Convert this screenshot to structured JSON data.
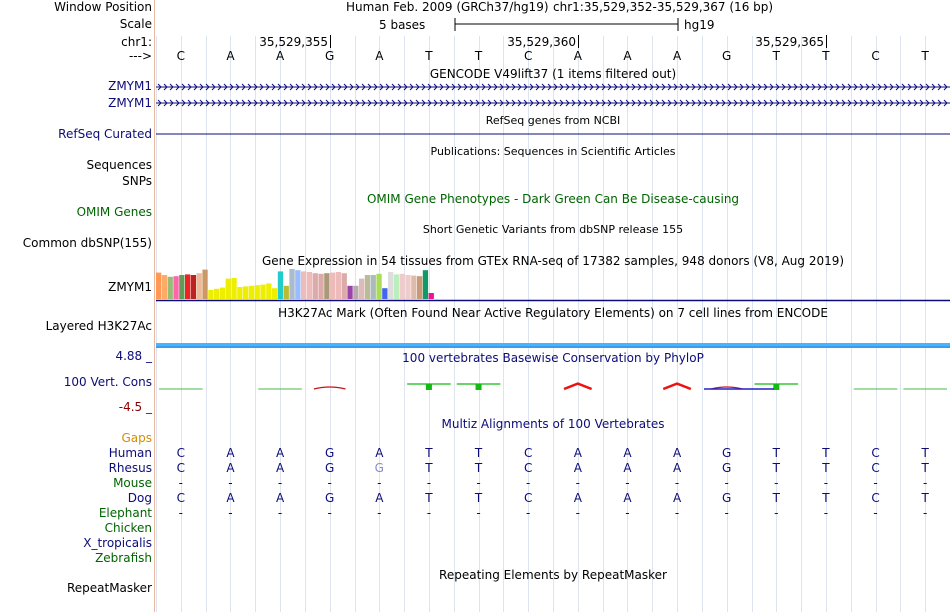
{
  "sidebar": {
    "labels": [
      {
        "text": "Window Position",
        "color": "#000000"
      },
      {
        "text": "Scale",
        "color": "#000000"
      },
      {
        "text": "chr1:",
        "color": "#000000"
      },
      {
        "text": "--->",
        "color": "#000000"
      },
      {
        "text": "ZMYM1",
        "color": "#0c0c78"
      },
      {
        "text": "ZMYM1",
        "color": "#0c0c78"
      },
      {
        "text": "RefSeq Curated",
        "color": "#0c0c78"
      },
      {
        "text": "Sequences",
        "color": "#000000"
      },
      {
        "text": "SNPs",
        "color": "#000000"
      },
      {
        "text": "OMIM Genes",
        "color": "#006400"
      },
      {
        "text": "Common dbSNP(155)",
        "color": "#000000"
      },
      {
        "text": "ZMYM1",
        "color": "#000000"
      },
      {
        "text": "Layered H3K27Ac",
        "color": "#000000"
      },
      {
        "text": "4.88 _",
        "color": "#0c0c78"
      },
      {
        "text": "100 Vert. Cons",
        "color": "#0c0c78"
      },
      {
        "text": "-4.5 _",
        "color": "#8b0000"
      },
      {
        "text": "Gaps",
        "color": "#d88c00"
      },
      {
        "text": "Human",
        "color": "#0c0c78"
      },
      {
        "text": "Rhesus",
        "color": "#0c0c78"
      },
      {
        "text": "Mouse",
        "color": "#006400"
      },
      {
        "text": "Dog",
        "color": "#0c0c78"
      },
      {
        "text": "Elephant",
        "color": "#006400"
      },
      {
        "text": "Chicken",
        "color": "#006400"
      },
      {
        "text": "X_tropicalis",
        "color": "#0c0c78"
      },
      {
        "text": "Zebrafish",
        "color": "#006400"
      },
      {
        "text": "RepeatMasker",
        "color": "#000000"
      }
    ]
  },
  "header": {
    "assembly": "Human Feb. 2009 (GRCh37/hg19)",
    "position": "chr1:35,529,352-35,529,367 (16 bp)",
    "scale_label": "5 bases",
    "scale_db": "hg19",
    "ticks": [
      "35,529,355",
      "35,529,360",
      "35,529,365"
    ]
  },
  "bases": [
    "C",
    "A",
    "A",
    "G",
    "A",
    "T",
    "T",
    "C",
    "A",
    "A",
    "A",
    "G",
    "T",
    "T",
    "C",
    "T"
  ],
  "tracks": {
    "gencode_title": "GENCODE V49lift37 (1 items filtered out)",
    "refseq_title": "RefSeq genes from NCBI",
    "publications_title": "Publications: Sequences in Scientific Articles",
    "omim_title": "OMIM Gene Phenotypes - Dark Green Can Be Disease-causing",
    "dbsnp_title": "Short Genetic Variants from dbSNP release 155",
    "gtex_title": "Gene Expression in 54 tissues from GTEx RNA-seq of 17382 samples, 948 donors (V8, Aug 2019)",
    "h3k27ac_title": "H3K27Ac Mark (Often Found Near Active Regulatory Elements) on 7 cell lines from ENCODE",
    "phylop_title": "100 vertebrates Basewise Conservation by PhyloP",
    "multiz_title": "Multiz Alignments of 100 Vertebrates",
    "repeatmasker_title": "Repeating Elements by RepeatMasker"
  },
  "gtex_bars": [
    {
      "color": "#ff9955",
      "value": 0.88
    },
    {
      "color": "#ffaa66",
      "value": 0.8
    },
    {
      "color": "#99bb77",
      "value": 0.74
    },
    {
      "color": "#ff66aa",
      "value": 0.76
    },
    {
      "color": "#669955",
      "value": 0.8
    },
    {
      "color": "#ee2222",
      "value": 0.82
    },
    {
      "color": "#bb2222",
      "value": 0.8
    },
    {
      "color": "#eebb99",
      "value": 0.86
    },
    {
      "color": "#cc9966",
      "value": 0.98
    },
    {
      "color": "#eeee00",
      "value": 0.3
    },
    {
      "color": "#eeee00",
      "value": 0.34
    },
    {
      "color": "#eeee00",
      "value": 0.38
    },
    {
      "color": "#eeee00",
      "value": 0.68
    },
    {
      "color": "#eeee00",
      "value": 0.7
    },
    {
      "color": "#eeee00",
      "value": 0.4
    },
    {
      "color": "#eeee00",
      "value": 0.42
    },
    {
      "color": "#eeee00",
      "value": 0.44
    },
    {
      "color": "#eeee00",
      "value": 0.46
    },
    {
      "color": "#eeee00",
      "value": 0.48
    },
    {
      "color": "#eeee00",
      "value": 0.52
    },
    {
      "color": "#eeee00",
      "value": 0.36
    },
    {
      "color": "#22cccc",
      "value": 0.92
    },
    {
      "color": "#bbbb33",
      "value": 0.44
    },
    {
      "color": "#aabbcc",
      "value": 1.0
    },
    {
      "color": "#99bbff",
      "value": 0.96
    },
    {
      "color": "#eebbbb",
      "value": 0.92
    },
    {
      "color": "#eebbbb",
      "value": 0.9
    },
    {
      "color": "#ddaaaa",
      "value": 0.86
    },
    {
      "color": "#ddaaaa",
      "value": 0.84
    },
    {
      "color": "#aa9977",
      "value": 0.86
    },
    {
      "color": "#eebbbb",
      "value": 0.88
    },
    {
      "color": "#eebbbb",
      "value": 0.9
    },
    {
      "color": "#ddaaaa",
      "value": 0.86
    },
    {
      "color": "#9944aa",
      "value": 0.44
    },
    {
      "color": "#bbaaaa",
      "value": 0.44
    },
    {
      "color": "#ddbbbb",
      "value": 0.68
    },
    {
      "color": "#bbbb99",
      "value": 0.8
    },
    {
      "color": "#aabbbb",
      "value": 0.8
    },
    {
      "color": "#aadd55",
      "value": 0.84
    },
    {
      "color": "#4466ee",
      "value": 0.36
    },
    {
      "color": "#dddddd",
      "value": 0.9
    },
    {
      "color": "#bbeebb",
      "value": 0.82
    },
    {
      "color": "#eecccc",
      "value": 0.84
    },
    {
      "color": "#eecccc",
      "value": 0.8
    },
    {
      "color": "#ddbbaa",
      "value": 0.78
    },
    {
      "color": "#cc9977",
      "value": 0.76
    },
    {
      "color": "#119966",
      "value": 0.96
    },
    {
      "color": "#ee1199",
      "value": 0.2
    }
  ],
  "phylop": {
    "max_label": "4.88",
    "min_label": "-4.5",
    "scores": [
      0.03,
      0.0,
      0.02,
      -0.03,
      0.0,
      0.1,
      0.1,
      0.0,
      -0.09,
      0.0,
      -0.09,
      -0.02,
      0.07,
      0.0,
      0.02,
      0.02
    ]
  },
  "multiz": {
    "rows": [
      {
        "species": "Human",
        "seq": [
          "C",
          "A",
          "A",
          "G",
          "A",
          "T",
          "T",
          "C",
          "A",
          "A",
          "A",
          "G",
          "T",
          "T",
          "C",
          "T"
        ],
        "color": "#0c0c78"
      },
      {
        "species": "Rhesus",
        "seq": [
          "C",
          "A",
          "A",
          "G",
          "G",
          "T",
          "T",
          "C",
          "A",
          "A",
          "A",
          "G",
          "T",
          "T",
          "C",
          "T"
        ],
        "color": "#0c0c78"
      },
      {
        "species": "Mouse",
        "seq": [
          "-",
          "-",
          "-",
          "-",
          "-",
          "-",
          "-",
          "-",
          "-",
          "-",
          "-",
          "-",
          "-",
          "-",
          "-",
          "-"
        ],
        "color": "#0c0c78"
      },
      {
        "species": "Dog",
        "seq": [
          "C",
          "A",
          "A",
          "G",
          "A",
          "T",
          "T",
          "C",
          "A",
          "A",
          "A",
          "G",
          "T",
          "T",
          "C",
          "T"
        ],
        "color": "#0c0c78"
      },
      {
        "species": "Elephant",
        "seq": [
          "-",
          "-",
          "-",
          "-",
          "-",
          "-",
          "-",
          "-",
          "-",
          "-",
          "-",
          "-",
          "-",
          "-",
          "-",
          "-"
        ],
        "color": "#0c0c78"
      }
    ]
  }
}
